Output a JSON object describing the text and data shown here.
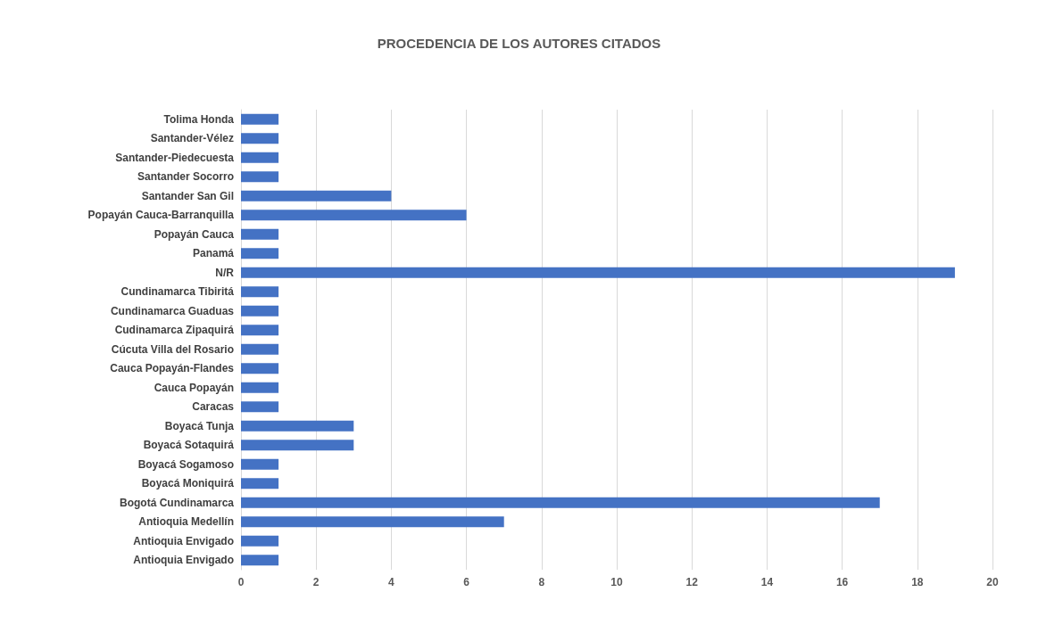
{
  "chart_data": {
    "type": "bar",
    "orientation": "horizontal",
    "title": "PROCEDENCIA DE LOS AUTORES CITADOS",
    "categories": [
      "Tolima Honda",
      "Santander-Vélez",
      "Santander-Piedecuesta",
      "Santander Socorro",
      "Santander San Gil",
      "Popayán Cauca-Barranquilla",
      "Popayán Cauca",
      "Panamá",
      "N/R",
      "Cundinamarca Tibiritá",
      "Cundinamarca Guaduas",
      "Cudinamarca Zipaquirá",
      "Cúcuta Villa del Rosario",
      "Cauca Popayán-Flandes",
      "Cauca Popayán",
      "Caracas",
      "Boyacá Tunja",
      "Boyacá Sotaquirá",
      "Boyacá Sogamoso",
      "Boyacá Moniquirá",
      "Bogotá Cundinamarca",
      "Antioquia Medellín",
      "Antioquia Envigado",
      "Antioquia Envigado"
    ],
    "values": [
      1,
      1,
      1,
      1,
      4,
      6,
      1,
      1,
      19,
      1,
      1,
      1,
      1,
      1,
      1,
      1,
      3,
      3,
      1,
      1,
      17,
      7,
      1,
      1
    ],
    "color": "#4472c4",
    "xlim": [
      0,
      20
    ],
    "xticks": [
      0,
      2,
      4,
      6,
      8,
      10,
      12,
      14,
      16,
      18,
      20
    ],
    "grid": "x"
  }
}
